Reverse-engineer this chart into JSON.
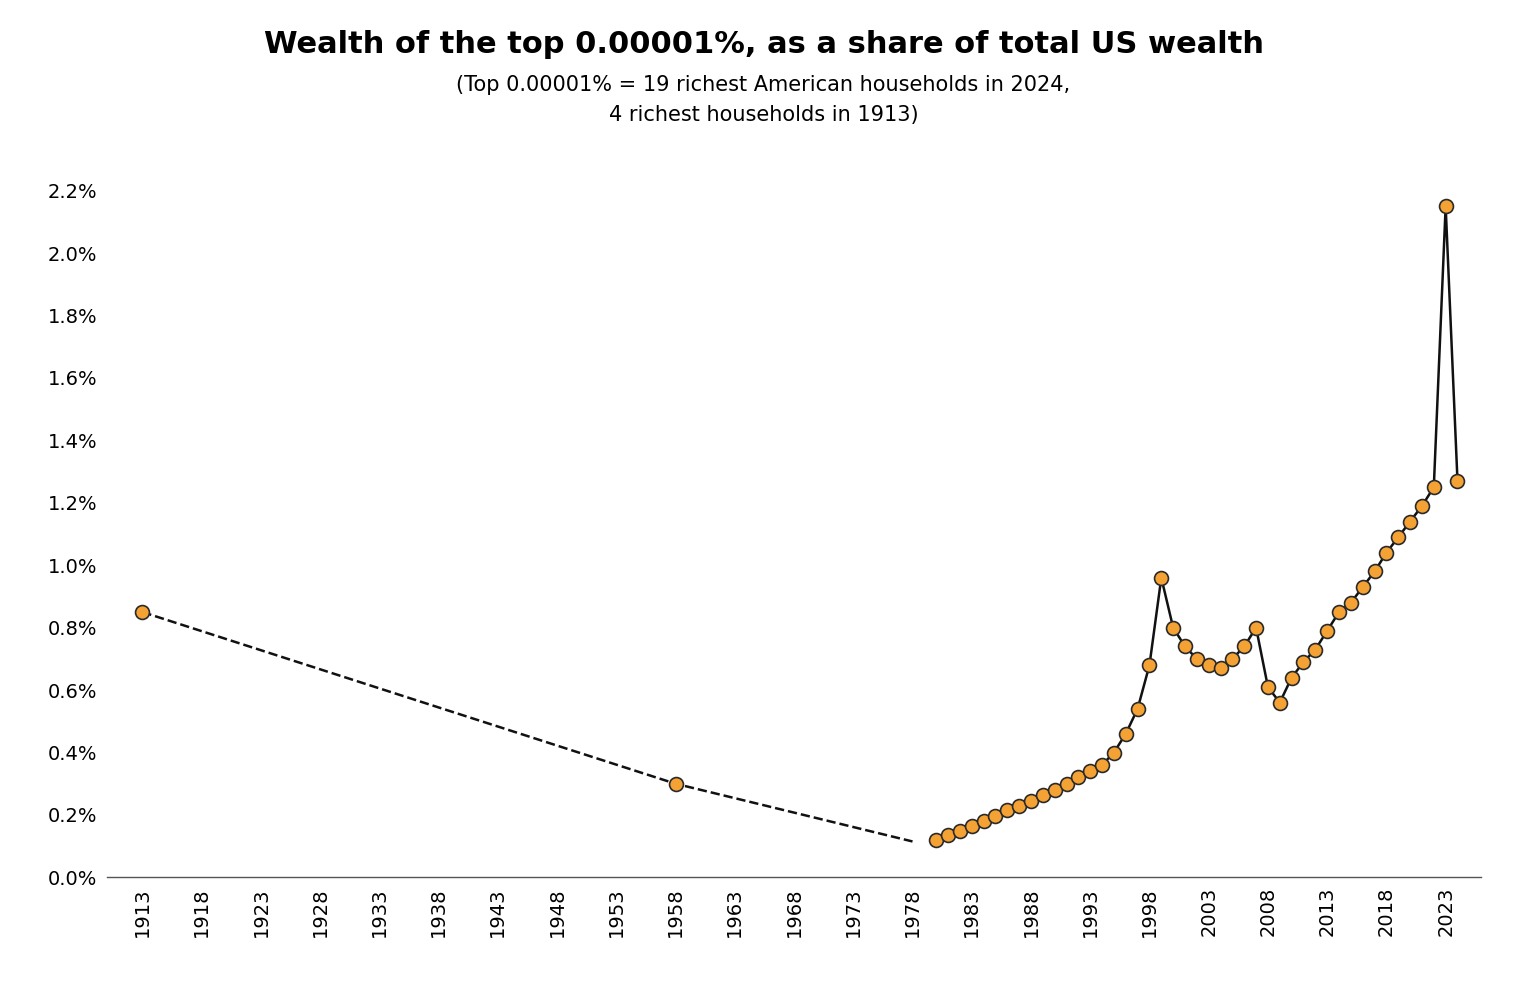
{
  "title": "Wealth of the top 0.00001%, as a share of total US wealth",
  "subtitle_line1": "(Top 0.00001% = 19 richest American households in 2024,",
  "subtitle_line2": "4 richest households in 1913)",
  "background_color": "#ffffff",
  "marker_color": "#F5A235",
  "marker_edge_color": "#2a2a2a",
  "line_color": "#111111",
  "dashed_color": "#111111",
  "marker_size": 100,
  "line_width": 1.8,
  "title_fontsize": 22,
  "subtitle_fontsize": 15,
  "tick_fontsize": 14,
  "yticks": [
    0.0,
    0.002,
    0.004,
    0.006,
    0.008,
    0.01,
    0.012,
    0.014,
    0.016,
    0.018,
    0.02,
    0.022
  ],
  "xticks": [
    1913,
    1918,
    1923,
    1928,
    1933,
    1938,
    1943,
    1948,
    1953,
    1958,
    1963,
    1968,
    1973,
    1978,
    1983,
    1988,
    1993,
    1998,
    2003,
    2008,
    2013,
    2018,
    2023
  ],
  "dashed_years": [
    1913,
    1958,
    1978
  ],
  "dashed_values": [
    0.0085,
    0.003,
    0.00115
  ],
  "solid_years": [
    1913,
    1958,
    1980,
    1981,
    1982,
    1983,
    1984,
    1985,
    1986,
    1987,
    1988,
    1989,
    1990,
    1991,
    1992,
    1993,
    1994,
    1995,
    1996,
    1997,
    1998,
    1999,
    2000,
    2001,
    2002,
    2003,
    2004,
    2005,
    2006,
    2007,
    2008,
    2009,
    2010,
    2011,
    2012,
    2013,
    2014,
    2015,
    2016,
    2017,
    2018,
    2019,
    2020,
    2021,
    2022,
    2023,
    2024
  ],
  "solid_values": [
    0.0085,
    0.003,
    0.0012,
    0.00135,
    0.0015,
    0.00165,
    0.0018,
    0.00195,
    0.00215,
    0.0023,
    0.00245,
    0.00265,
    0.0028,
    0.003,
    0.0032,
    0.0034,
    0.0036,
    0.004,
    0.0046,
    0.0054,
    0.0068,
    0.0096,
    0.008,
    0.0074,
    0.007,
    0.0068,
    0.0067,
    0.007,
    0.0074,
    0.008,
    0.0061,
    0.0056,
    0.0064,
    0.0069,
    0.0073,
    0.0079,
    0.0085,
    0.0088,
    0.0093,
    0.0098,
    0.0104,
    0.0109,
    0.0114,
    0.0119,
    0.0125,
    0.0215,
    0.0127
  ]
}
